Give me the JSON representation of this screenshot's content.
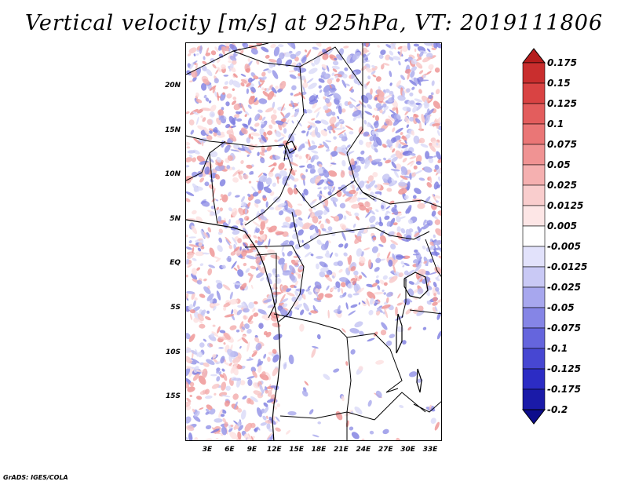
{
  "title": "Vertical velocity [m/s] at 925hPa, VT: 2019111806",
  "credit": "GrADS: IGES/COLA",
  "map": {
    "lat_ticks": [
      "20N",
      "15N",
      "10N",
      "5N",
      "EQ",
      "5S",
      "10S",
      "15S"
    ],
    "lon_ticks": [
      "3E",
      "6E",
      "9E",
      "12E",
      "15E",
      "18E",
      "21E",
      "24E",
      "27E",
      "30E",
      "33E"
    ]
  },
  "colorbar": {
    "levels": [
      "0.175",
      "0.15",
      "0.125",
      "0.1",
      "0.075",
      "0.05",
      "0.025",
      "0.0125",
      "0.005",
      "-0.005",
      "-0.0125",
      "-0.025",
      "-0.05",
      "-0.075",
      "-0.1",
      "-0.125",
      "-0.175",
      "-0.2"
    ],
    "colors": [
      "#b51d1d",
      "#c92e2e",
      "#d94343",
      "#e35d5d",
      "#ea7676",
      "#f09393",
      "#f5b0b0",
      "#f9cdcd",
      "#fde6e6",
      "#ffffff",
      "#e2e2fb",
      "#c9c9f5",
      "#a7a7ee",
      "#8585e6",
      "#6565dd",
      "#4747d2",
      "#2c2cc4",
      "#1a1aa8",
      "#0d0d8c"
    ]
  }
}
